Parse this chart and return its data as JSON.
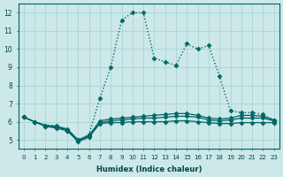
{
  "xlabel": "Humidex (Indice chaleur)",
  "background_color": "#cce8e8",
  "grid_color": "#aad4d4",
  "line_color": "#006666",
  "xlim": [
    -0.5,
    23.5
  ],
  "ylim": [
    4.5,
    12.5
  ],
  "xticks": [
    0,
    1,
    2,
    3,
    4,
    5,
    6,
    7,
    8,
    9,
    10,
    11,
    12,
    13,
    14,
    15,
    16,
    17,
    18,
    19,
    20,
    21,
    22,
    23
  ],
  "yticks": [
    5,
    6,
    7,
    8,
    9,
    10,
    11,
    12
  ],
  "series": [
    {
      "x": [
        0,
        1,
        2,
        3,
        4,
        5,
        6,
        7,
        8,
        9,
        10,
        11,
        12,
        13,
        14,
        15,
        16,
        17,
        18,
        19,
        20,
        21,
        22,
        23
      ],
      "y": [
        6.25,
        6.0,
        5.75,
        5.65,
        5.5,
        4.9,
        5.15,
        5.9,
        5.95,
        5.95,
        6.0,
        6.0,
        6.0,
        6.0,
        6.05,
        6.05,
        6.0,
        5.95,
        5.9,
        5.9,
        5.95,
        5.95,
        5.95,
        5.95
      ],
      "marker": "D",
      "markersize": 2.5,
      "linewidth": 0.9,
      "linestyle": "-"
    },
    {
      "x": [
        0,
        1,
        2,
        3,
        4,
        5,
        6,
        7,
        8,
        9,
        10,
        11,
        12,
        13,
        14,
        15,
        16,
        17,
        18,
        19,
        20,
        21,
        22,
        23
      ],
      "y": [
        6.25,
        6.0,
        5.75,
        5.7,
        5.55,
        4.95,
        5.2,
        5.95,
        6.05,
        6.1,
        6.15,
        6.2,
        6.2,
        6.25,
        6.3,
        6.3,
        6.25,
        6.1,
        6.05,
        6.1,
        6.2,
        6.2,
        6.2,
        6.05
      ],
      "marker": "D",
      "markersize": 2.5,
      "linewidth": 0.9,
      "linestyle": "-"
    },
    {
      "x": [
        0,
        1,
        2,
        3,
        4,
        5,
        6,
        7,
        8,
        9,
        10,
        11,
        12,
        13,
        14,
        15,
        16,
        17,
        18,
        19,
        20,
        21,
        22,
        23
      ],
      "y": [
        6.25,
        6.0,
        5.8,
        5.75,
        5.6,
        5.0,
        5.25,
        6.05,
        6.15,
        6.2,
        6.25,
        6.3,
        6.35,
        6.4,
        6.45,
        6.45,
        6.35,
        6.2,
        6.15,
        6.2,
        6.35,
        6.35,
        6.3,
        6.1
      ],
      "marker": "D",
      "markersize": 2.5,
      "linewidth": 0.9,
      "linestyle": "-"
    },
    {
      "x": [
        0,
        1,
        2,
        3,
        4,
        5,
        6,
        7,
        8,
        9,
        10,
        11,
        12,
        13,
        14,
        15,
        16,
        17,
        18,
        19,
        20,
        21,
        22,
        23
      ],
      "y": [
        6.25,
        6.0,
        5.8,
        5.8,
        5.5,
        5.0,
        5.3,
        7.3,
        9.0,
        11.6,
        12.0,
        12.0,
        9.5,
        9.3,
        9.1,
        10.3,
        10.0,
        10.2,
        8.5,
        6.6,
        6.5,
        6.5,
        6.4,
        6.1
      ],
      "marker": "D",
      "markersize": 2.5,
      "linewidth": 1.0,
      "linestyle": ":"
    }
  ]
}
